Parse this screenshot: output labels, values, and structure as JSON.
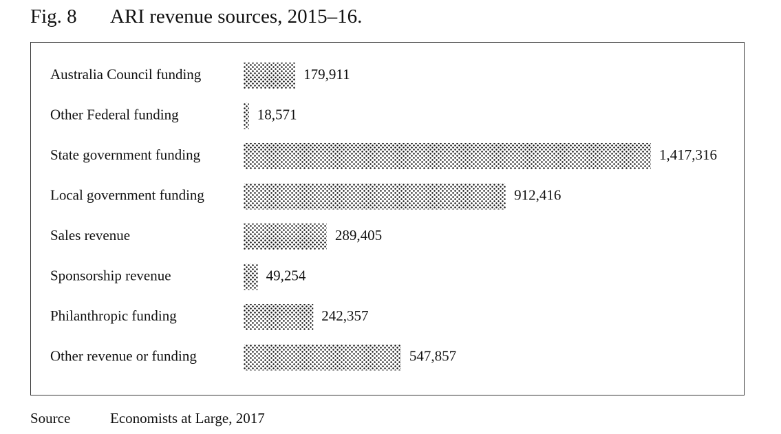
{
  "figure": {
    "label": "Fig. 8",
    "title": "ARI revenue sources, 2015–16."
  },
  "source": {
    "label": "Source",
    "text": "Economists at Large, 2017"
  },
  "colors": {
    "bar_dots": "#111111",
    "text": "#111111",
    "frame": "#333333"
  },
  "chart_data": {
    "type": "bar",
    "orientation": "horizontal",
    "fill_pattern": "stipple-dots",
    "categories": [
      "Australia Council funding",
      "Other Federal funding",
      "State government funding",
      "Local government funding",
      "Sales revenue",
      "Sponsorship revenue",
      "Philanthropic funding",
      "Other revenue or funding"
    ],
    "values": [
      179911,
      18571,
      1417316,
      912416,
      289405,
      49254,
      242357,
      547857
    ],
    "value_labels": [
      "179,911",
      "18,571",
      "1,417,316",
      "912,416",
      "289,405",
      "49,254",
      "242,357",
      "547,857"
    ],
    "grid": false,
    "legend": "none"
  }
}
